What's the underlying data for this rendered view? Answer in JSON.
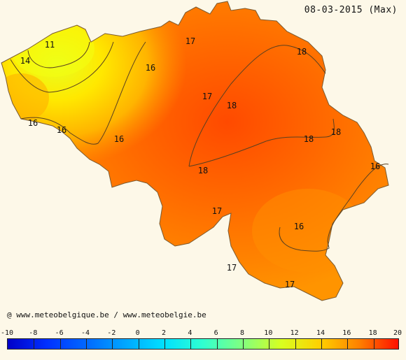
{
  "date_label": "08-03-2015 (Max)",
  "credit": "@ www.meteobelgique.be / www.meteobelgie.be",
  "isotherm_labels": [
    {
      "text": "11"
    },
    {
      "text": "14"
    },
    {
      "text": "16"
    },
    {
      "text": "16"
    },
    {
      "text": "16"
    },
    {
      "text": "16"
    },
    {
      "text": "17"
    },
    {
      "text": "17"
    },
    {
      "text": "18"
    },
    {
      "text": "18"
    },
    {
      "text": "18"
    },
    {
      "text": "18"
    },
    {
      "text": "18"
    },
    {
      "text": "16"
    },
    {
      "text": "17"
    },
    {
      "text": "16"
    },
    {
      "text": "17"
    },
    {
      "text": "17"
    }
  ],
  "legend": {
    "ticks": [
      "-10",
      "-8",
      "-6",
      "-4",
      "-2",
      "0",
      "2",
      "4",
      "6",
      "8",
      "10",
      "12",
      "14",
      "16",
      "18",
      "20"
    ],
    "colors": {
      "cold": "#0000c8",
      "mid": "#80ff80",
      "warm": "#ff1000"
    }
  }
}
